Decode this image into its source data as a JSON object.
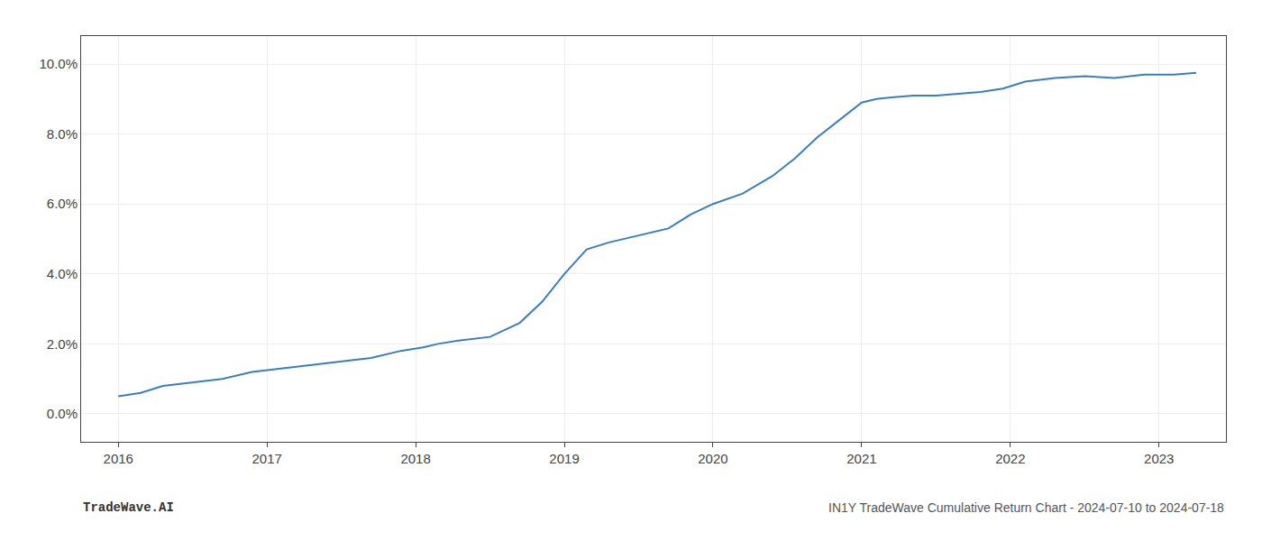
{
  "chart_data": {
    "type": "line",
    "x": [
      2016.0,
      2016.15,
      2016.3,
      2016.5,
      2016.7,
      2016.9,
      2017.1,
      2017.3,
      2017.5,
      2017.7,
      2017.9,
      2018.05,
      2018.15,
      2018.3,
      2018.5,
      2018.7,
      2018.85,
      2019.0,
      2019.15,
      2019.3,
      2019.5,
      2019.7,
      2019.85,
      2020.0,
      2020.2,
      2020.4,
      2020.55,
      2020.7,
      2020.85,
      2021.0,
      2021.1,
      2021.2,
      2021.35,
      2021.5,
      2021.65,
      2021.8,
      2021.95,
      2022.1,
      2022.3,
      2022.5,
      2022.7,
      2022.9,
      2023.1,
      2023.25
    ],
    "values": [
      0.005,
      0.006,
      0.008,
      0.009,
      0.01,
      0.012,
      0.013,
      0.014,
      0.015,
      0.016,
      0.018,
      0.019,
      0.02,
      0.021,
      0.022,
      0.026,
      0.032,
      0.04,
      0.047,
      0.049,
      0.051,
      0.053,
      0.057,
      0.06,
      0.063,
      0.068,
      0.073,
      0.079,
      0.084,
      0.089,
      0.09,
      0.0905,
      0.091,
      0.091,
      0.0915,
      0.092,
      0.093,
      0.095,
      0.096,
      0.0965,
      0.096,
      0.097,
      0.097,
      0.0975
    ],
    "color": "#3a7ebf",
    "xlim": [
      2015.75,
      2023.45
    ],
    "ylim": [
      -0.008,
      0.108
    ],
    "xticks": [
      2016,
      2017,
      2018,
      2019,
      2020,
      2021,
      2022,
      2023
    ],
    "yticks": [
      {
        "value": 0.0,
        "label": "0.0%"
      },
      {
        "value": 0.02,
        "label": "2.0%"
      },
      {
        "value": 0.04,
        "label": "4.0%"
      },
      {
        "value": 0.06,
        "label": "6.0%"
      },
      {
        "value": 0.08,
        "label": "8.0%"
      },
      {
        "value": 0.1,
        "label": "10.0%"
      }
    ],
    "grid": true,
    "annotations": [
      "TradeWave.AI",
      "IN1Y TradeWave Cumulative Return Chart - 2024-07-10 to 2024-07-18"
    ]
  }
}
